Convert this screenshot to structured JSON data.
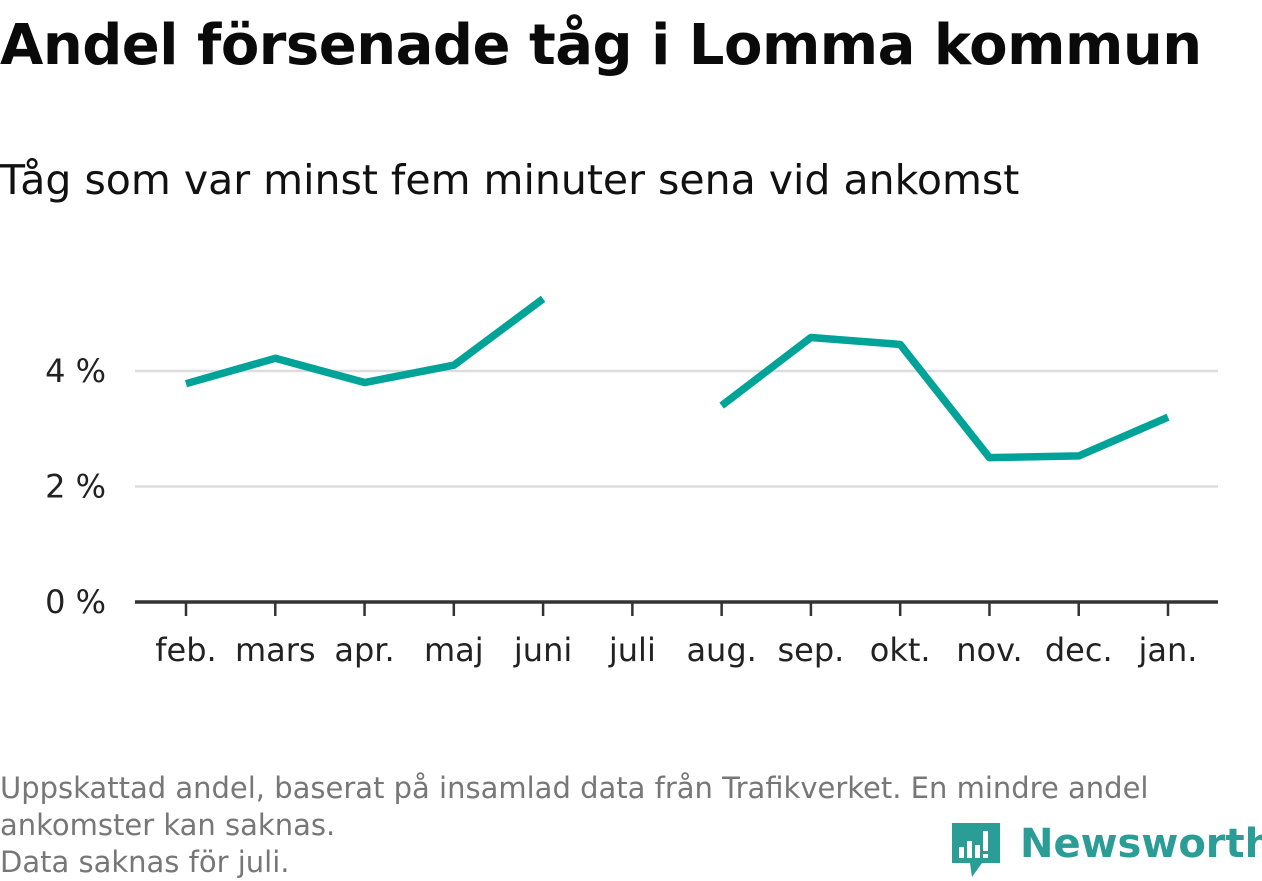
{
  "header": {
    "title": "Andel försenade tåg i Lomma kommun",
    "subtitle": "Tåg som var minst fem minuter sena vid ankomst"
  },
  "chart_data": {
    "type": "line",
    "title": "Andel försenade tåg i Lomma kommun",
    "subtitle": "Tåg som var minst fem minuter sena vid ankomst",
    "xlabel": "",
    "ylabel": "",
    "categories": [
      "feb.",
      "mars",
      "apr.",
      "maj",
      "juni",
      "juli",
      "aug.",
      "sep.",
      "okt.",
      "nov.",
      "dec.",
      "jan."
    ],
    "series": [
      {
        "values": [
          3.78,
          4.22,
          3.8,
          4.1,
          5.25,
          null,
          3.4,
          4.58,
          4.46,
          2.5,
          2.53,
          3.2
        ]
      }
    ],
    "ylim": [
      0,
      5.5
    ],
    "yticks": [
      0,
      2,
      4
    ],
    "ytick_labels": [
      "0 %",
      "2 %",
      "4 %"
    ],
    "grid": true,
    "legend": "none",
    "line_color": "#00a398",
    "grid_color": "#dddddd",
    "axis_color": "#333333"
  },
  "footer": {
    "note_line1": "Uppskattad andel, baserat på insamlad data från Trafikverket. En mindre andel",
    "note_line2": "ankomster kan saknas.",
    "note_line3": "Data saknas för juli."
  },
  "logo": {
    "text": "Newsworthy",
    "icon": "bar-chart-speech-bubble-icon",
    "color": "#2a9d96"
  }
}
